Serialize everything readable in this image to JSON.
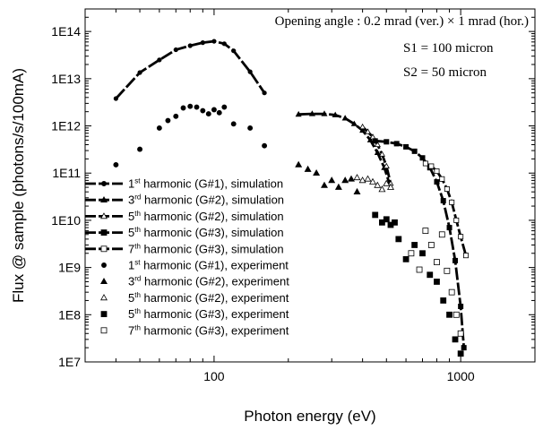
{
  "chart_data": {
    "type": "scatter",
    "xlabel": "Photon energy (eV)",
    "ylabel": "Flux @ sample (photons/s/100mA)",
    "x_scale": "log",
    "y_scale": "log",
    "xlim": [
      30,
      2000
    ],
    "ylim": [
      10000000.0,
      300000000000000.0
    ],
    "x_tick_labels": [
      "100",
      "1000"
    ],
    "y_tick_labels": [
      "1E7",
      "1E8",
      "1E9",
      "1E10",
      "1E11",
      "1E12",
      "1E13",
      "1E14"
    ],
    "annotations": [
      {
        "id": "angle",
        "text": "Opening angle : 0.2 mrad (ver.) × 1 mrad (hor.)"
      },
      {
        "id": "s1",
        "text": "S1 = 100 micron"
      },
      {
        "id": "s2",
        "text": "S2 =   50 micron"
      }
    ],
    "series": [
      {
        "name_pre": "1",
        "name_sup": "st",
        "name_post": " harmonic (G#1), simulation",
        "kind": "line",
        "marker": "circle-filled",
        "x": [
          40,
          50,
          60,
          70,
          80,
          90,
          100,
          110,
          120,
          140,
          160
        ],
        "y": [
          3800000000000.0,
          13500000000000.0,
          25000000000000.0,
          41000000000000.0,
          50000000000000.0,
          58000000000000.0,
          62000000000000.0,
          55000000000000.0,
          39000000000000.0,
          14000000000000.0,
          5000000000000.0
        ]
      },
      {
        "name_pre": "3",
        "name_sup": "rd",
        "name_post": " harmonic (G#2), simulation",
        "kind": "line",
        "marker": "triangle-filled",
        "x": [
          220,
          250,
          280,
          310,
          340,
          370,
          400,
          430,
          460,
          490,
          520
        ],
        "y": [
          1750000000000.0,
          1800000000000.0,
          1800000000000.0,
          1700000000000.0,
          1450000000000.0,
          1100000000000.0,
          800000000000.0,
          500000000000.0,
          270000000000.0,
          130000000000.0,
          50000000000.0
        ]
      },
      {
        "name_pre": "5",
        "name_sup": "th",
        "name_post": " harmonic (G#2), simulation",
        "kind": "line",
        "marker": "triangle-open",
        "x": [
          400,
          420,
          440,
          460,
          480,
          500,
          520
        ],
        "y": [
          950000000000.0,
          750000000000.0,
          580000000000.0,
          400000000000.0,
          250000000000.0,
          140000000000.0,
          60000000000.0
        ]
      },
      {
        "name_pre": "5",
        "name_sup": "th",
        "name_post": " harmonic (G#3), simulation",
        "kind": "line",
        "marker": "square-filled",
        "x": [
          450,
          500,
          550,
          600,
          650,
          700,
          750,
          800,
          850,
          900,
          950,
          1000,
          1030
        ],
        "y": [
          480000000000.0,
          460000000000.0,
          420000000000.0,
          360000000000.0,
          290000000000.0,
          210000000000.0,
          130000000000.0,
          65000000000.0,
          26000000000.0,
          7000000000.0,
          1400000000.0,
          150000000.0,
          20000000.0
        ]
      },
      {
        "name_pre": "7",
        "name_sup": "th",
        "name_post": " harmonic (G#3), simulation",
        "kind": "line",
        "marker": "square-open",
        "x": [
          720,
          760,
          800,
          840,
          880,
          920,
          960,
          1000,
          1050
        ],
        "y": [
          160000000000.0,
          140000000000.0,
          110000000000.0,
          75000000000.0,
          46000000000.0,
          24000000000.0,
          10000000000.0,
          4500000000.0,
          1800000000.0
        ]
      },
      {
        "name_pre": "1",
        "name_sup": "st",
        "name_post": " harmonic (G#1), experiment",
        "kind": "points",
        "marker": "circle-filled",
        "x": [
          40,
          50,
          60,
          65,
          70,
          75,
          80,
          85,
          90,
          95,
          100,
          105,
          110,
          120,
          140,
          160
        ],
        "y": [
          150000000000.0,
          320000000000.0,
          900000000000.0,
          1300000000000.0,
          1600000000000.0,
          2400000000000.0,
          2600000000000.0,
          2500000000000.0,
          2100000000000.0,
          1800000000000.0,
          2200000000000.0,
          1900000000000.0,
          2500000000000.0,
          1100000000000.0,
          900000000000.0,
          380000000000.0
        ]
      },
      {
        "name_pre": "3",
        "name_sup": "rd",
        "name_post": " harmonic (G#2), experiment",
        "kind": "points",
        "marker": "triangle-filled",
        "x": [
          220,
          240,
          260,
          280,
          300,
          320,
          340,
          360,
          380
        ],
        "y": [
          150000000000.0,
          120000000000.0,
          100000000000.0,
          55000000000.0,
          70000000000.0,
          50000000000.0,
          70000000000.0,
          75000000000.0,
          40000000000.0
        ]
      },
      {
        "name_pre": "5",
        "name_sup": "th",
        "name_post": " harmonic (G#2), experiment",
        "kind": "points",
        "marker": "triangle-open",
        "x": [
          380,
          400,
          420,
          440,
          460,
          480,
          500,
          520
        ],
        "y": [
          80000000000.0,
          70000000000.0,
          75000000000.0,
          65000000000.0,
          55000000000.0,
          45000000000.0,
          60000000000.0,
          50000000000.0
        ]
      },
      {
        "name_pre": "5",
        "name_sup": "th",
        "name_post": " harmonic (G#3), experiment",
        "kind": "points",
        "marker": "square-filled",
        "x": [
          450,
          480,
          500,
          520,
          540,
          560,
          600,
          650,
          700,
          750,
          800,
          850,
          900,
          950,
          1000
        ],
        "y": [
          13000000000.0,
          9000000000.0,
          10500000000.0,
          8000000000.0,
          9000000000.0,
          4000000000.0,
          1500000000.0,
          3000000000.0,
          2000000000.0,
          700000000.0,
          500000000.0,
          200000000.0,
          100000000.0,
          30000000.0,
          15000000.0
        ]
      },
      {
        "name_pre": "7",
        "name_sup": "th",
        "name_post": " harmonic (G#3), experiment",
        "kind": "points",
        "marker": "square-open",
        "x": [
          630,
          680,
          720,
          760,
          800,
          840,
          880,
          920,
          960,
          1000
        ],
        "y": [
          2000000000.0,
          900000000.0,
          6000000000.0,
          3000000000.0,
          1300000000.0,
          5000000000.0,
          850000000.0,
          300000000.0,
          100000000.0,
          40000000.0
        ]
      }
    ]
  }
}
